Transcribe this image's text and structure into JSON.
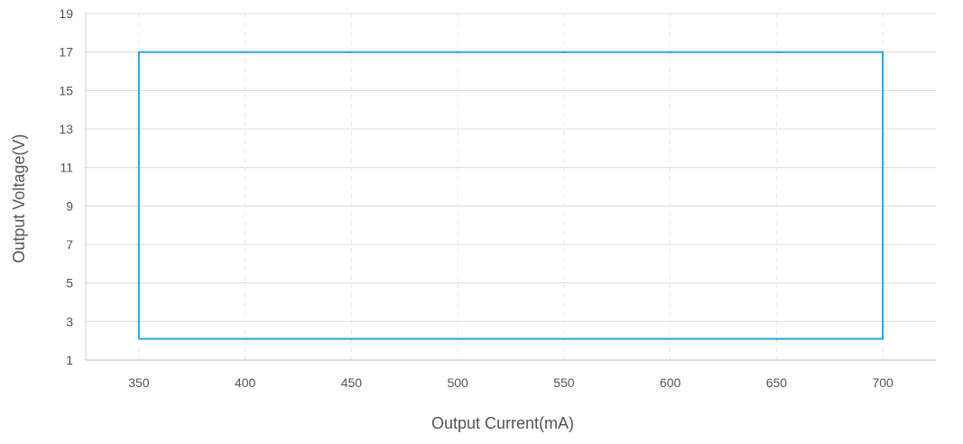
{
  "chart_data": {
    "type": "line",
    "title": "",
    "xlabel": "Output Current(mA)",
    "ylabel": "Output Voltage(V)",
    "xlim": [
      325,
      725
    ],
    "ylim": [
      1,
      19
    ],
    "x_ticks": [
      "350",
      "400",
      "450",
      "500",
      "550",
      "600",
      "650",
      "700"
    ],
    "y_ticks": [
      "1",
      "3",
      "5",
      "7",
      "9",
      "11",
      "13",
      "15",
      "17",
      "19"
    ],
    "grid": {
      "horizontal": true,
      "vertical": "dashed"
    },
    "legend": "none",
    "series": [
      {
        "color": "#2aa3d8",
        "x": [
          350,
          700,
          700,
          350,
          350
        ],
        "y": [
          2.1,
          2.1,
          17,
          17,
          2.1
        ]
      }
    ]
  }
}
